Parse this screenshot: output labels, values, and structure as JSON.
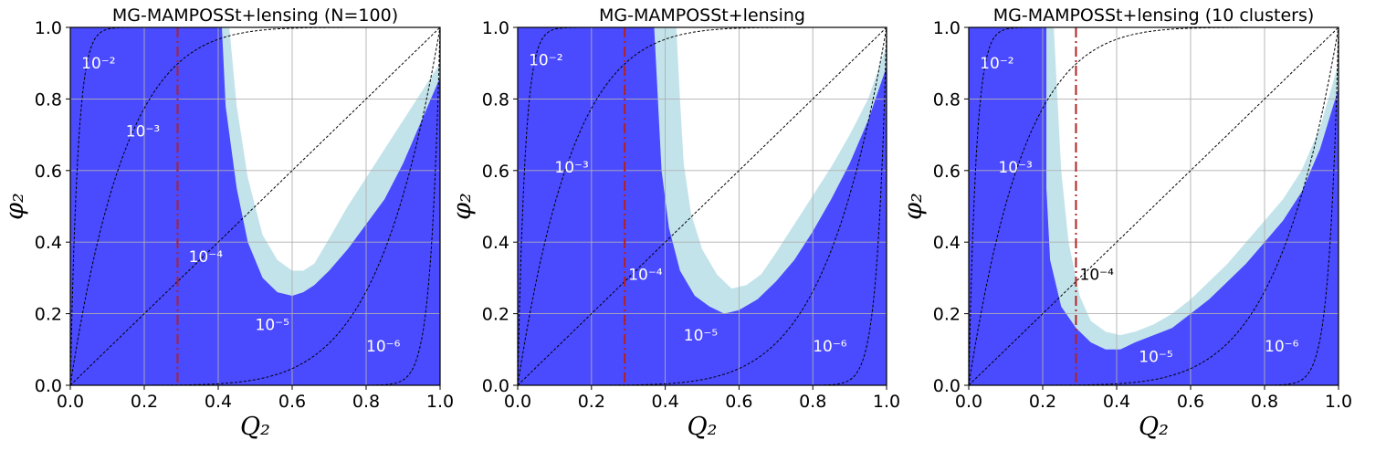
{
  "colors": {
    "excluded_region": "#4a4aff",
    "uncertainty_band": "#c3e3ea",
    "allowed_region": "#ffffff",
    "reference_line": "#b22222",
    "contours": "#000000",
    "grid": "#b0b0b0"
  },
  "chart_data": [
    {
      "type": "area",
      "title": "MG-MAMPOSSt+lensing (N=100)",
      "xlabel": "Q₂",
      "ylabel": "φ₂",
      "xlim": [
        0,
        1
      ],
      "ylim": [
        0,
        1
      ],
      "xticks": [
        "0.0",
        "0.2",
        "0.4",
        "0.6",
        "0.8",
        "1.0"
      ],
      "yticks": [
        "0.0",
        "0.2",
        "0.4",
        "0.6",
        "0.8",
        "1.0"
      ],
      "grid": true,
      "reference_line_x": 0.29,
      "allowed_region_inner_boundary": [
        [
          0.43,
          1.0
        ],
        [
          0.45,
          0.78
        ],
        [
          0.48,
          0.58
        ],
        [
          0.52,
          0.42
        ],
        [
          0.56,
          0.35
        ],
        [
          0.6,
          0.32
        ],
        [
          0.63,
          0.32
        ],
        [
          0.66,
          0.34
        ],
        [
          0.7,
          0.41
        ],
        [
          0.75,
          0.5
        ],
        [
          0.8,
          0.58
        ],
        [
          0.85,
          0.66
        ],
        [
          0.9,
          0.74
        ],
        [
          0.95,
          0.82
        ],
        [
          1.0,
          0.9
        ]
      ],
      "allowed_region_outer_boundary": [
        [
          0.41,
          1.0
        ],
        [
          0.42,
          0.78
        ],
        [
          0.45,
          0.55
        ],
        [
          0.48,
          0.4
        ],
        [
          0.52,
          0.3
        ],
        [
          0.56,
          0.26
        ],
        [
          0.6,
          0.25
        ],
        [
          0.63,
          0.26
        ],
        [
          0.66,
          0.28
        ],
        [
          0.7,
          0.32
        ],
        [
          0.75,
          0.38
        ],
        [
          0.8,
          0.45
        ],
        [
          0.85,
          0.52
        ],
        [
          0.9,
          0.62
        ],
        [
          0.95,
          0.74
        ],
        [
          1.0,
          0.86
        ]
      ],
      "contour_labels": [
        {
          "text": "10⁻²",
          "x": 0.03,
          "y": 0.9,
          "color": "#ffffff"
        },
        {
          "text": "10⁻³",
          "x": 0.15,
          "y": 0.71,
          "color": "#ffffff"
        },
        {
          "text": "10⁻⁴",
          "x": 0.32,
          "y": 0.36,
          "color": "#ffffff"
        },
        {
          "text": "10⁻⁵",
          "x": 0.5,
          "y": 0.17,
          "color": "#ffffff"
        },
        {
          "text": "10⁻⁶",
          "x": 0.8,
          "y": 0.11,
          "color": "#ffffff"
        }
      ]
    },
    {
      "type": "area",
      "title": "MG-MAMPOSSt+lensing",
      "xlabel": "Q₂",
      "ylabel": "φ₂",
      "xlim": [
        0,
        1
      ],
      "ylim": [
        0,
        1
      ],
      "xticks": [
        "0.0",
        "0.2",
        "0.4",
        "0.6",
        "0.8",
        "1.0"
      ],
      "yticks": [
        "0.0",
        "0.2",
        "0.4",
        "0.6",
        "0.8",
        "1.0"
      ],
      "grid": true,
      "reference_line_x": 0.29,
      "allowed_region_inner_boundary": [
        [
          0.43,
          1.0
        ],
        [
          0.44,
          0.8
        ],
        [
          0.45,
          0.62
        ],
        [
          0.47,
          0.48
        ],
        [
          0.5,
          0.38
        ],
        [
          0.54,
          0.31
        ],
        [
          0.58,
          0.27
        ],
        [
          0.62,
          0.28
        ],
        [
          0.66,
          0.31
        ],
        [
          0.7,
          0.37
        ],
        [
          0.75,
          0.45
        ],
        [
          0.8,
          0.53
        ],
        [
          0.85,
          0.61
        ],
        [
          0.9,
          0.7
        ],
        [
          0.95,
          0.8
        ],
        [
          1.0,
          0.95
        ]
      ],
      "allowed_region_outer_boundary": [
        [
          0.37,
          1.0
        ],
        [
          0.38,
          0.8
        ],
        [
          0.39,
          0.6
        ],
        [
          0.41,
          0.44
        ],
        [
          0.44,
          0.32
        ],
        [
          0.48,
          0.25
        ],
        [
          0.52,
          0.22
        ],
        [
          0.56,
          0.2
        ],
        [
          0.6,
          0.21
        ],
        [
          0.65,
          0.24
        ],
        [
          0.7,
          0.29
        ],
        [
          0.75,
          0.35
        ],
        [
          0.8,
          0.43
        ],
        [
          0.85,
          0.52
        ],
        [
          0.9,
          0.62
        ],
        [
          0.95,
          0.74
        ],
        [
          1.0,
          0.89
        ]
      ],
      "contour_labels": [
        {
          "text": "10⁻²",
          "x": 0.03,
          "y": 0.91,
          "color": "#ffffff"
        },
        {
          "text": "10⁻³",
          "x": 0.1,
          "y": 0.61,
          "color": "#ffffff"
        },
        {
          "text": "10⁻⁴",
          "x": 0.3,
          "y": 0.31,
          "color": "#ffffff"
        },
        {
          "text": "10⁻⁵",
          "x": 0.45,
          "y": 0.14,
          "color": "#ffffff"
        },
        {
          "text": "10⁻⁶",
          "x": 0.8,
          "y": 0.11,
          "color": "#ffffff"
        }
      ]
    },
    {
      "type": "area",
      "title": "MG-MAMPOSSt+lensing (10 clusters)",
      "xlabel": "Q₂",
      "ylabel": "φ₂",
      "xlim": [
        0,
        1
      ],
      "ylim": [
        0,
        1
      ],
      "xticks": [
        "0.0",
        "0.2",
        "0.4",
        "0.6",
        "0.8",
        "1.0"
      ],
      "yticks": [
        "0.0",
        "0.2",
        "0.4",
        "0.6",
        "0.8",
        "1.0"
      ],
      "grid": true,
      "reference_line_x": 0.29,
      "allowed_region_inner_boundary": [
        [
          0.23,
          1.0
        ],
        [
          0.24,
          0.8
        ],
        [
          0.25,
          0.6
        ],
        [
          0.27,
          0.4
        ],
        [
          0.3,
          0.25
        ],
        [
          0.33,
          0.18
        ],
        [
          0.37,
          0.15
        ],
        [
          0.41,
          0.14
        ],
        [
          0.45,
          0.15
        ],
        [
          0.5,
          0.17
        ],
        [
          0.55,
          0.2
        ],
        [
          0.6,
          0.24
        ],
        [
          0.65,
          0.29
        ],
        [
          0.7,
          0.34
        ],
        [
          0.75,
          0.4
        ],
        [
          0.8,
          0.46
        ],
        [
          0.85,
          0.52
        ],
        [
          0.9,
          0.6
        ],
        [
          0.95,
          0.72
        ],
        [
          1.0,
          0.9
        ]
      ],
      "allowed_region_outer_boundary": [
        [
          0.21,
          1.0
        ],
        [
          0.21,
          0.8
        ],
        [
          0.21,
          0.55
        ],
        [
          0.22,
          0.35
        ],
        [
          0.25,
          0.22
        ],
        [
          0.29,
          0.16
        ],
        [
          0.33,
          0.12
        ],
        [
          0.37,
          0.1
        ],
        [
          0.41,
          0.1
        ],
        [
          0.45,
          0.12
        ],
        [
          0.5,
          0.14
        ],
        [
          0.55,
          0.16
        ],
        [
          0.6,
          0.2
        ],
        [
          0.65,
          0.24
        ],
        [
          0.7,
          0.29
        ],
        [
          0.75,
          0.34
        ],
        [
          0.8,
          0.4
        ],
        [
          0.85,
          0.46
        ],
        [
          0.9,
          0.54
        ],
        [
          0.95,
          0.66
        ],
        [
          1.0,
          0.83
        ]
      ],
      "contour_labels": [
        {
          "text": "10⁻²",
          "x": 0.03,
          "y": 0.9,
          "color": "#ffffff"
        },
        {
          "text": "10⁻³",
          "x": 0.08,
          "y": 0.61,
          "color": "#ffffff"
        },
        {
          "text": "10⁻⁴",
          "x": 0.3,
          "y": 0.31,
          "color": "#000000"
        },
        {
          "text": "10⁻⁵",
          "x": 0.46,
          "y": 0.08,
          "color": "#ffffff"
        },
        {
          "text": "10⁻⁶",
          "x": 0.8,
          "y": 0.11,
          "color": "#ffffff"
        }
      ]
    }
  ]
}
